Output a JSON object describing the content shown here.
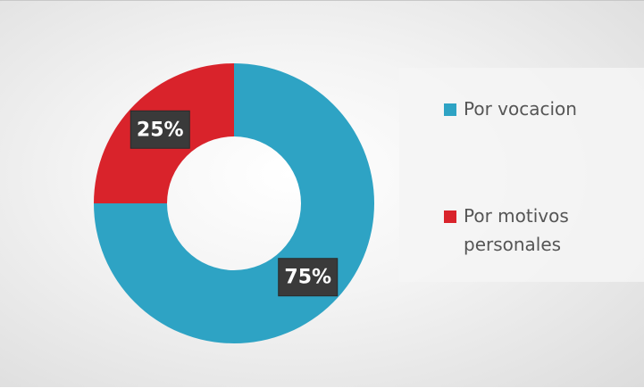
{
  "chart_data": {
    "type": "donut",
    "categories": [
      "Por vocacion",
      "Por motivos personales"
    ],
    "values": [
      75,
      25
    ],
    "value_labels": [
      "75%",
      "25%"
    ],
    "colors": [
      "#2ea3c4",
      "#d9232b"
    ],
    "legend": "right"
  }
}
